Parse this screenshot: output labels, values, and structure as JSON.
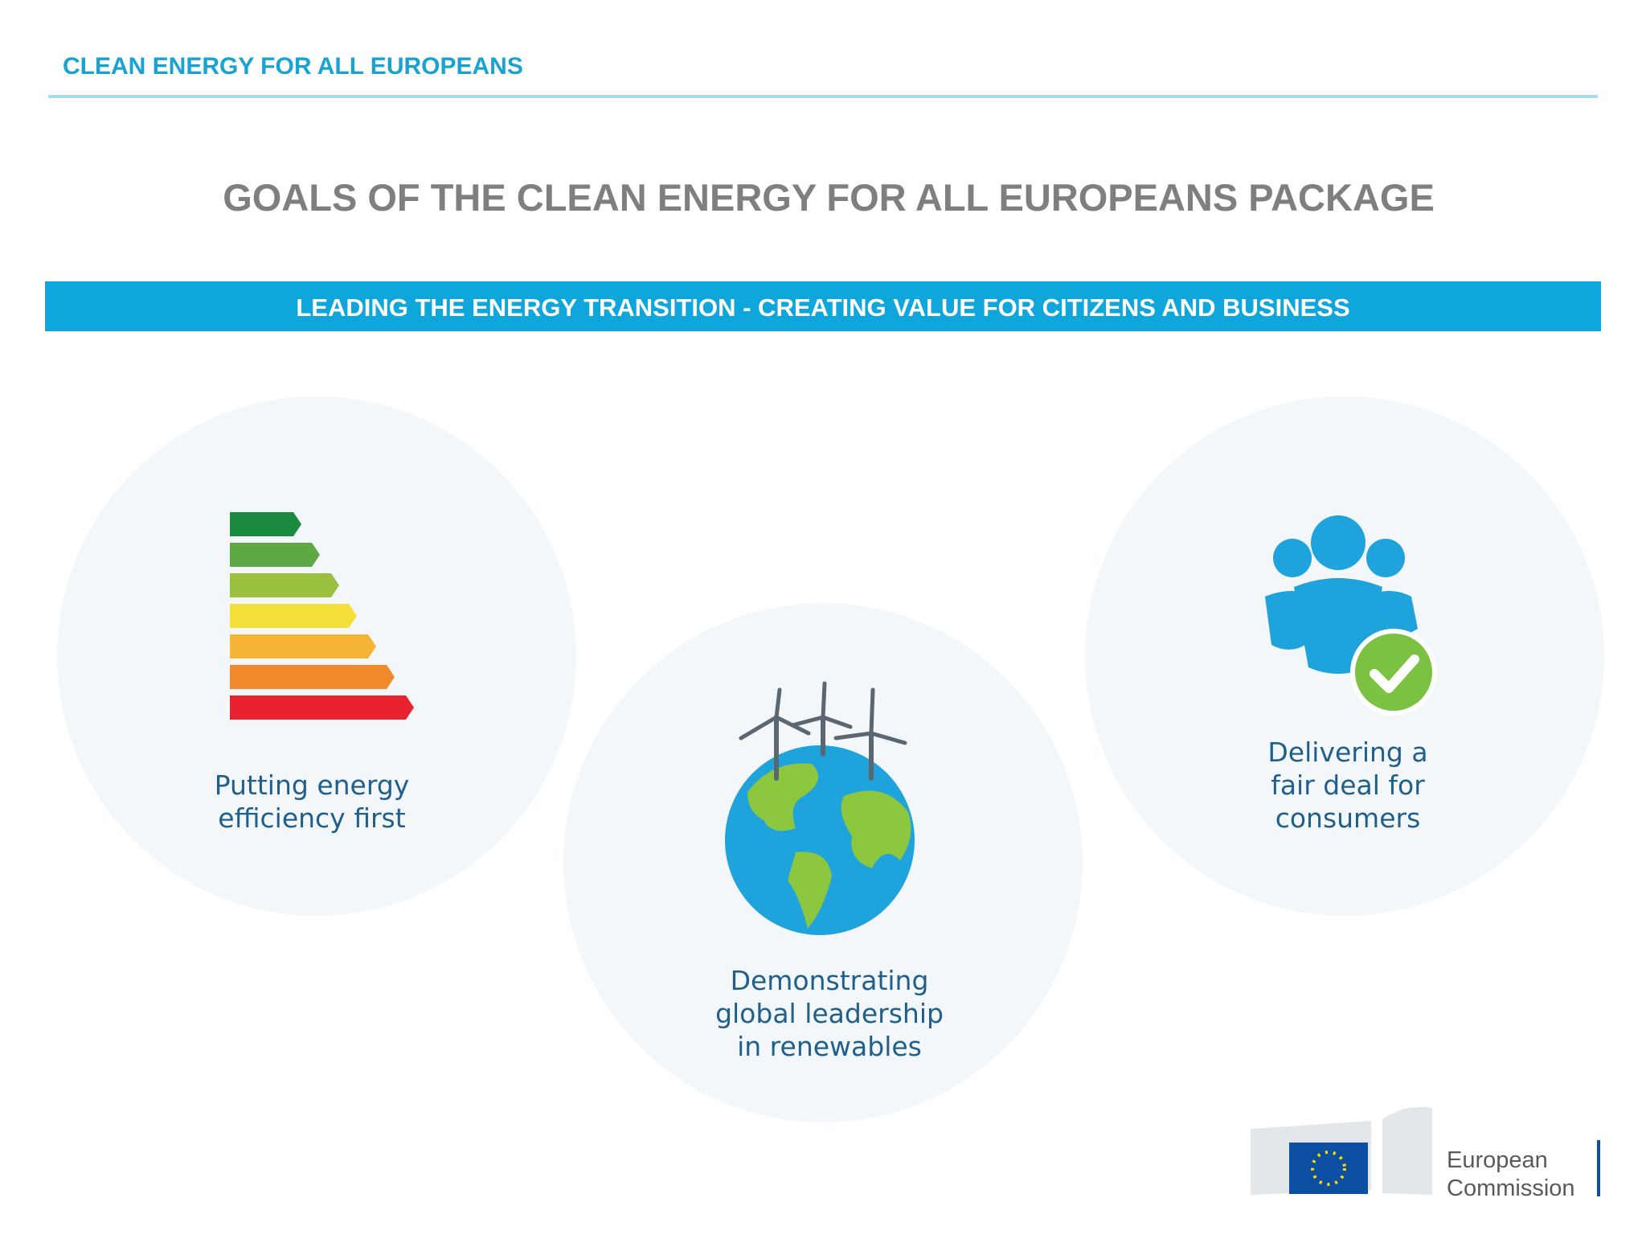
{
  "header": {
    "title": "CLEAN ENERGY FOR ALL EUROPEANS"
  },
  "slide": {
    "title": "GOALS OF THE CLEAN ENERGY FOR ALL EUROPEANS PACKAGE",
    "banner": "LEADING THE ENERGY TRANSITION - CREATING VALUE FOR CITIZENS AND BUSINESS",
    "goals": [
      {
        "lines": [
          "Putting energy",
          "efficiency first"
        ]
      },
      {
        "lines": [
          "Demonstrating",
          "global leadership",
          "in renewables"
        ]
      },
      {
        "lines": [
          "Delivering a",
          "fair deal for",
          "consumers"
        ]
      }
    ]
  },
  "logo": {
    "lines": [
      "European",
      "Commission"
    ]
  }
}
